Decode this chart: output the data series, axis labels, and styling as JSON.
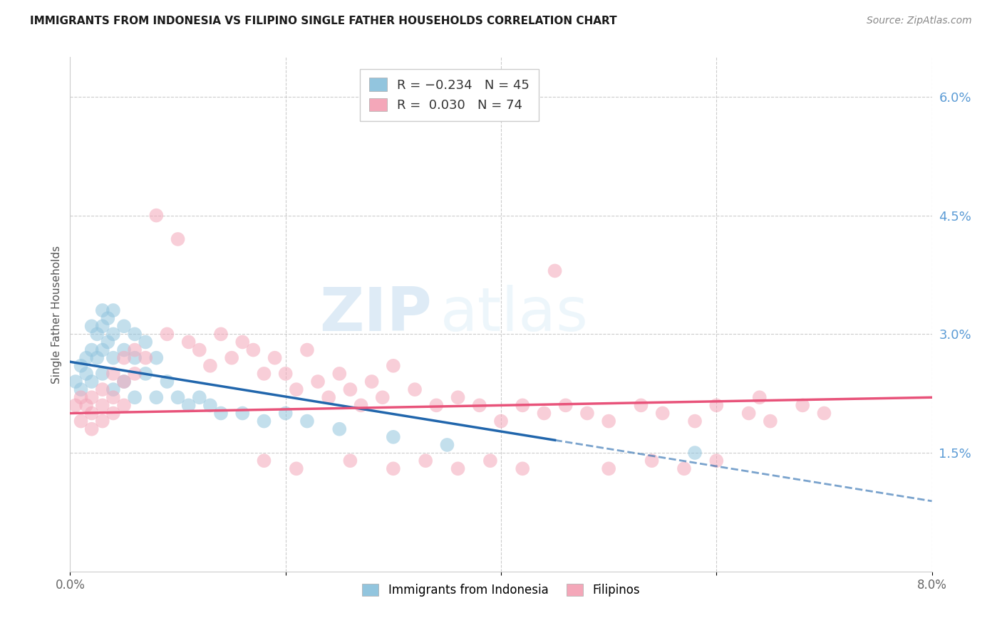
{
  "title": "IMMIGRANTS FROM INDONESIA VS FILIPINO SINGLE FATHER HOUSEHOLDS CORRELATION CHART",
  "source": "Source: ZipAtlas.com",
  "ylabel": "Single Father Households",
  "xlim": [
    0.0,
    0.08
  ],
  "ylim": [
    0.0,
    0.065
  ],
  "xticks": [
    0.0,
    0.02,
    0.04,
    0.06,
    0.08
  ],
  "xtick_labels": [
    "0.0%",
    "",
    "",
    "",
    "8.0%"
  ],
  "yticks_right": [
    0.015,
    0.03,
    0.045,
    0.06
  ],
  "ytick_labels_right": [
    "1.5%",
    "3.0%",
    "4.5%",
    "6.0%"
  ],
  "blue_color": "#92c5de",
  "pink_color": "#f4a7b9",
  "blue_line_color": "#2166ac",
  "pink_line_color": "#e8537a",
  "watermark_zip": "ZIP",
  "watermark_atlas": "atlas",
  "indonesia_x": [
    0.0005,
    0.001,
    0.001,
    0.0015,
    0.0015,
    0.002,
    0.002,
    0.002,
    0.0025,
    0.0025,
    0.003,
    0.003,
    0.003,
    0.003,
    0.0035,
    0.0035,
    0.004,
    0.004,
    0.004,
    0.004,
    0.005,
    0.005,
    0.005,
    0.006,
    0.006,
    0.006,
    0.007,
    0.007,
    0.008,
    0.008,
    0.009,
    0.01,
    0.011,
    0.012,
    0.013,
    0.014,
    0.016,
    0.018,
    0.02,
    0.022,
    0.025,
    0.03,
    0.035,
    0.042,
    0.058
  ],
  "indonesia_y": [
    0.024,
    0.026,
    0.023,
    0.027,
    0.025,
    0.031,
    0.028,
    0.024,
    0.03,
    0.027,
    0.033,
    0.031,
    0.028,
    0.025,
    0.032,
    0.029,
    0.033,
    0.03,
    0.027,
    0.023,
    0.031,
    0.028,
    0.024,
    0.03,
    0.027,
    0.022,
    0.029,
    0.025,
    0.027,
    0.022,
    0.024,
    0.022,
    0.021,
    0.022,
    0.021,
    0.02,
    0.02,
    0.019,
    0.02,
    0.019,
    0.018,
    0.017,
    0.016,
    0.058,
    0.015
  ],
  "filipino_x": [
    0.0005,
    0.001,
    0.001,
    0.0015,
    0.002,
    0.002,
    0.002,
    0.003,
    0.003,
    0.003,
    0.004,
    0.004,
    0.004,
    0.005,
    0.005,
    0.005,
    0.006,
    0.006,
    0.007,
    0.008,
    0.009,
    0.01,
    0.011,
    0.012,
    0.013,
    0.014,
    0.015,
    0.016,
    0.017,
    0.018,
    0.019,
    0.02,
    0.021,
    0.022,
    0.023,
    0.024,
    0.025,
    0.026,
    0.027,
    0.028,
    0.029,
    0.03,
    0.032,
    0.034,
    0.036,
    0.038,
    0.04,
    0.042,
    0.044,
    0.046,
    0.048,
    0.05,
    0.053,
    0.055,
    0.058,
    0.06,
    0.063,
    0.065,
    0.068,
    0.07,
    0.018,
    0.021,
    0.026,
    0.03,
    0.033,
    0.036,
    0.039,
    0.042,
    0.045,
    0.05,
    0.054,
    0.057,
    0.06,
    0.064
  ],
  "filipino_y": [
    0.021,
    0.022,
    0.019,
    0.021,
    0.022,
    0.02,
    0.018,
    0.023,
    0.021,
    0.019,
    0.025,
    0.022,
    0.02,
    0.027,
    0.024,
    0.021,
    0.028,
    0.025,
    0.027,
    0.045,
    0.03,
    0.042,
    0.029,
    0.028,
    0.026,
    0.03,
    0.027,
    0.029,
    0.028,
    0.025,
    0.027,
    0.025,
    0.023,
    0.028,
    0.024,
    0.022,
    0.025,
    0.023,
    0.021,
    0.024,
    0.022,
    0.026,
    0.023,
    0.021,
    0.022,
    0.021,
    0.019,
    0.021,
    0.02,
    0.021,
    0.02,
    0.019,
    0.021,
    0.02,
    0.019,
    0.021,
    0.02,
    0.019,
    0.021,
    0.02,
    0.014,
    0.013,
    0.014,
    0.013,
    0.014,
    0.013,
    0.014,
    0.013,
    0.038,
    0.013,
    0.014,
    0.013,
    0.014,
    0.022
  ]
}
